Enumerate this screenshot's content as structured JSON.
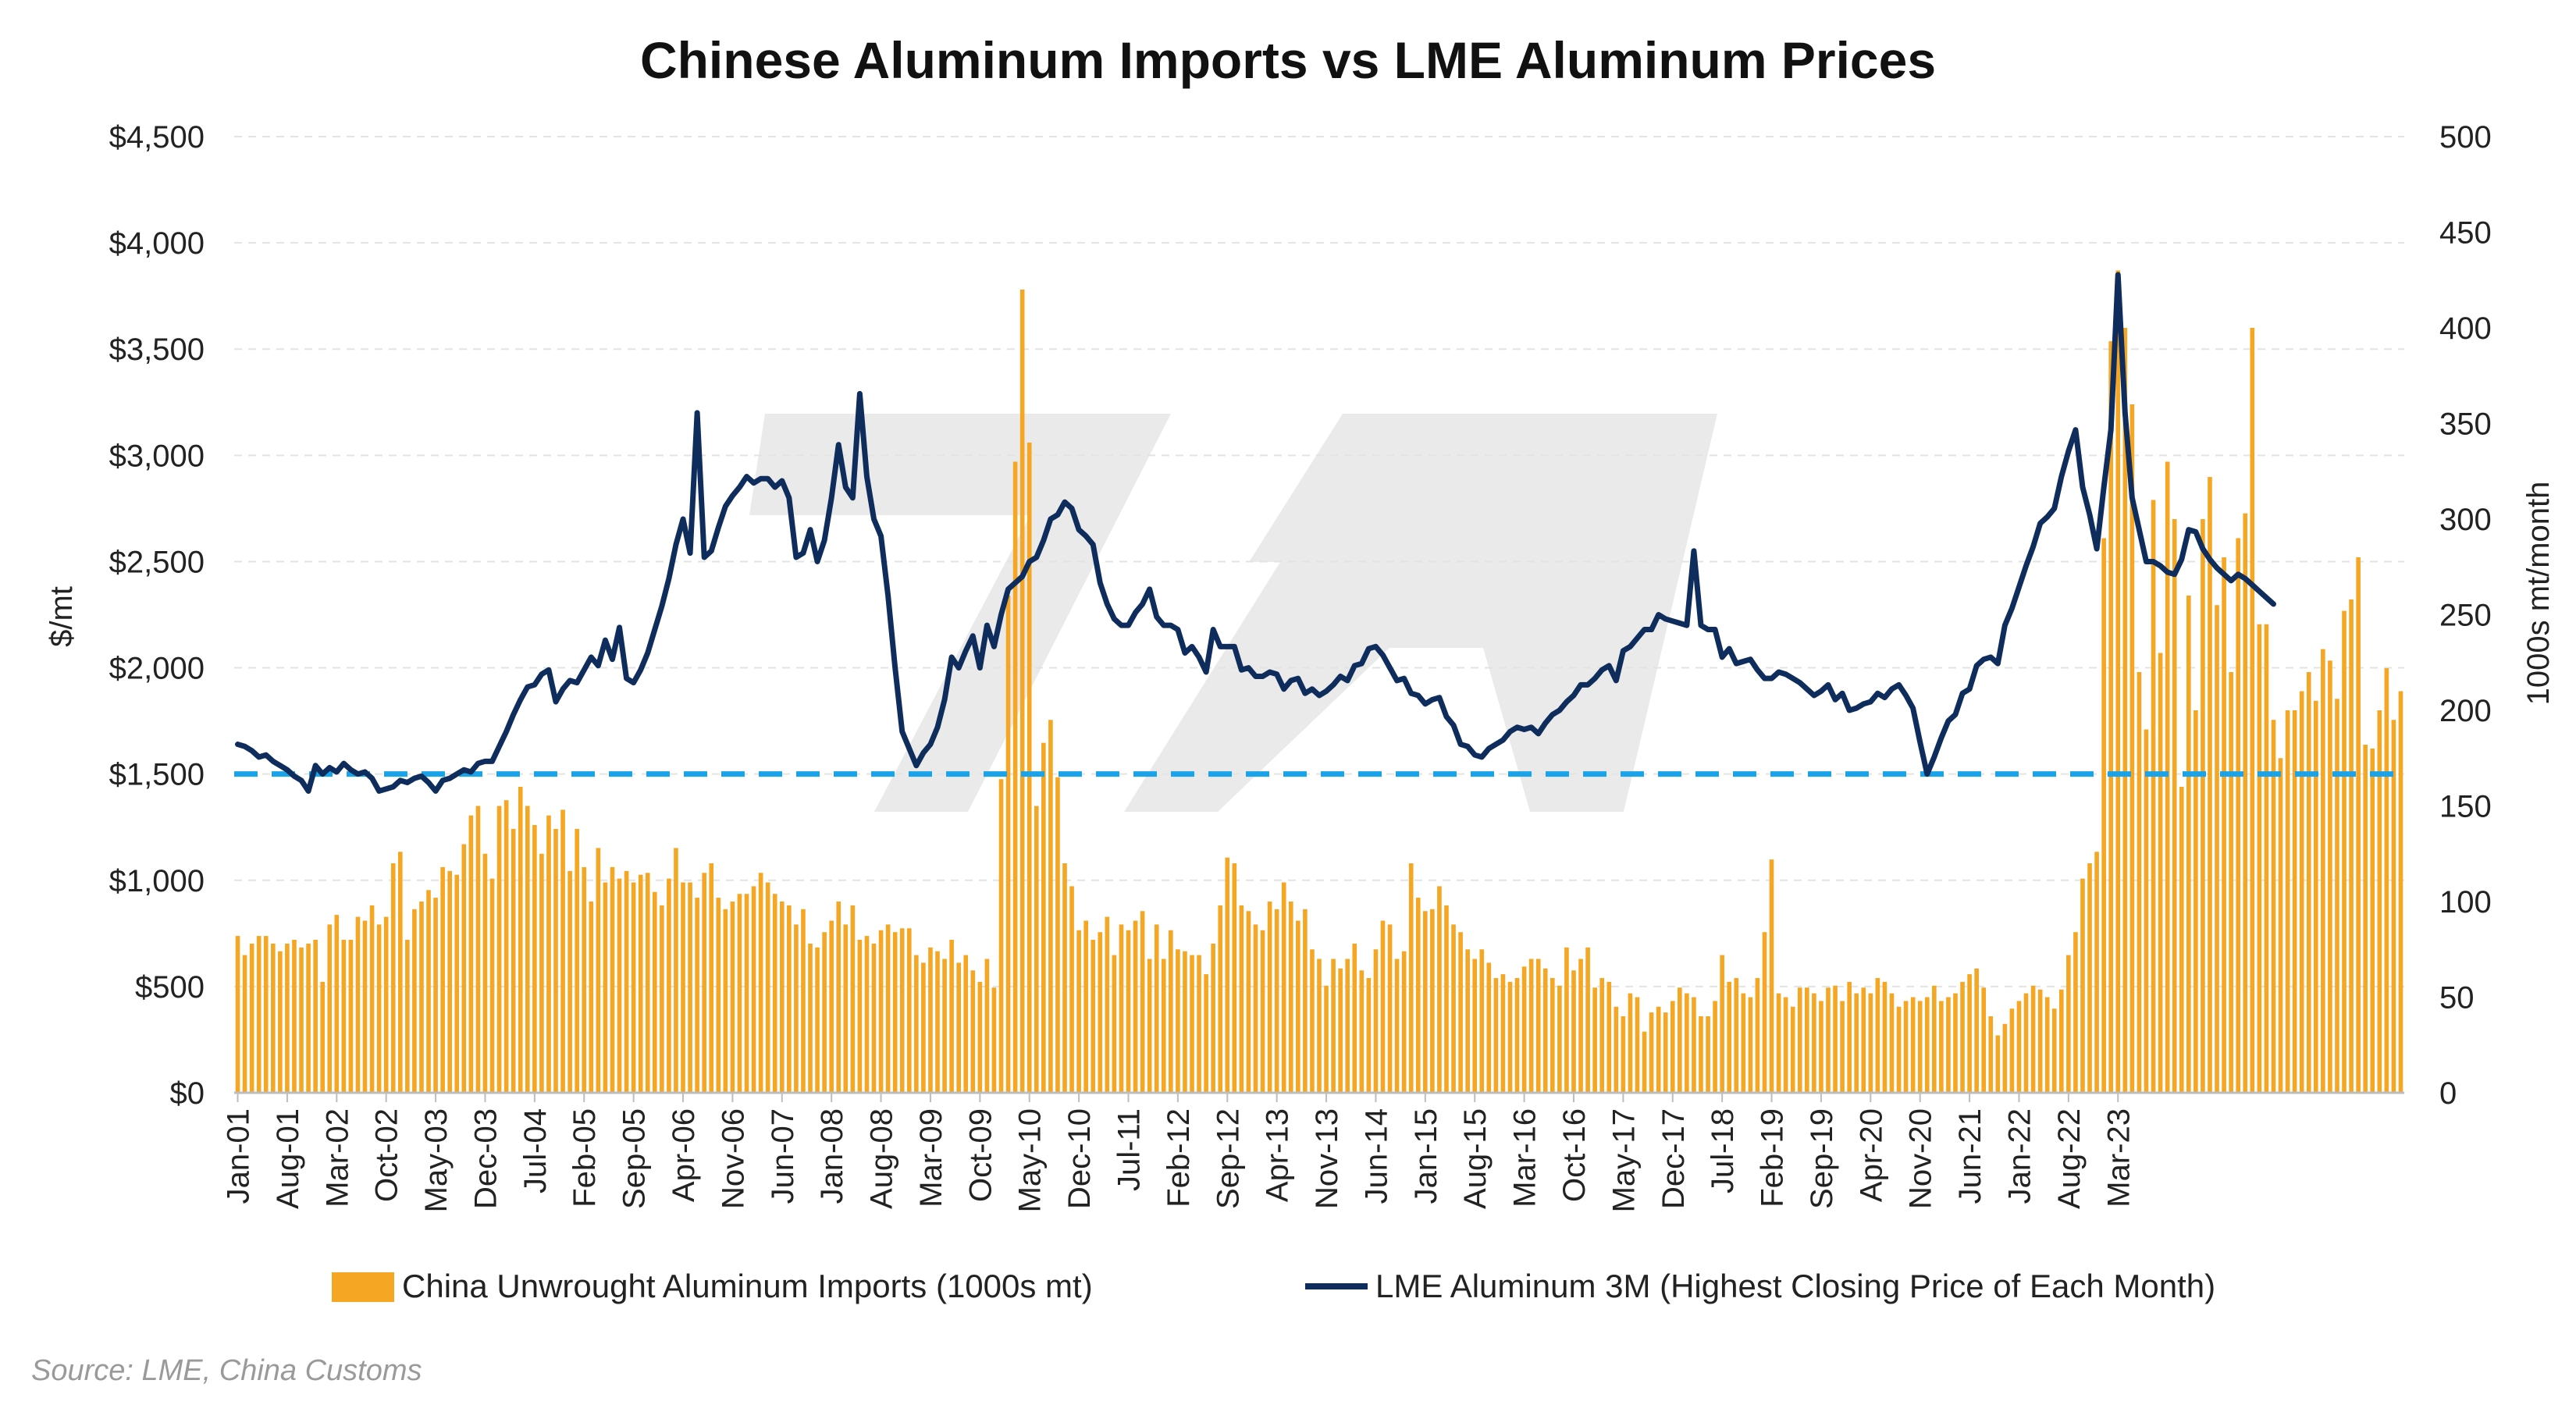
{
  "chart_data": {
    "type": "bar+line",
    "title": "Chinese Aluminum Imports vs LME Aluminum Prices",
    "subtitle": "",
    "source": "Source: LME, China Customs",
    "watermark_text": "7A",
    "y_left": {
      "label": "$/mt",
      "range": [
        0,
        4500
      ],
      "ticks": [
        "$0",
        "$500",
        "$1,000",
        "$1,500",
        "$2,000",
        "$2,500",
        "$3,000",
        "$3,500",
        "$4,000",
        "$4,500"
      ]
    },
    "y_right": {
      "label": "1000s mt/month",
      "range": [
        0,
        500
      ],
      "ticks": [
        "0",
        "50",
        "100",
        "150",
        "200",
        "250",
        "300",
        "350",
        "400",
        "450",
        "500"
      ]
    },
    "x_start": "Jan-01",
    "x_tick_labels": [
      "Jan-01",
      "Aug-01",
      "Mar-02",
      "Oct-02",
      "May-03",
      "Dec-03",
      "Jul-04",
      "Feb-05",
      "Sep-05",
      "Apr-06",
      "Nov-06",
      "Jun-07",
      "Jan-08",
      "Aug-08",
      "Mar-09",
      "Oct-09",
      "May-10",
      "Dec-10",
      "Jul-11",
      "Feb-12",
      "Sep-12",
      "Apr-13",
      "Nov-13",
      "Jun-14",
      "Jan-15",
      "Aug-15",
      "Mar-16",
      "Oct-16",
      "May-17",
      "Dec-17",
      "Jul-18",
      "Feb-19",
      "Sep-19",
      "Apr-20",
      "Nov-20",
      "Jun-21",
      "Jan-22",
      "Aug-22",
      "Mar-23"
    ],
    "grid": true,
    "reference_line": {
      "axis": "left",
      "value": 1500,
      "style": "dashed",
      "color": "#1aa3e8"
    },
    "legend_position": "bottom",
    "colors": {
      "bars": "#f5a623",
      "line": "#0f2d5c",
      "reference": "#1aa3e8",
      "grid": "#e3e3e3",
      "watermark": "#d9d9d9"
    },
    "series": [
      {
        "name": "China Unwrought Aluminum Imports (1000s mt)",
        "type": "bar",
        "axis": "right",
        "values": [
          82,
          72,
          78,
          82,
          82,
          78,
          74,
          78,
          80,
          76,
          78,
          80,
          58,
          88,
          93,
          80,
          80,
          92,
          90,
          98,
          88,
          92,
          120,
          126,
          80,
          96,
          100,
          106,
          102,
          118,
          116,
          114,
          130,
          145,
          150,
          125,
          112,
          150,
          153,
          138,
          160,
          150,
          140,
          125,
          145,
          138,
          148,
          116,
          138,
          118,
          100,
          128,
          110,
          118,
          112,
          116,
          110,
          114,
          115,
          105,
          98,
          112,
          128,
          110,
          110,
          102,
          115,
          120,
          102,
          96,
          100,
          104,
          104,
          108,
          115,
          110,
          104,
          100,
          98,
          88,
          96,
          78,
          76,
          84,
          90,
          100,
          88,
          98,
          80,
          82,
          78,
          85,
          88,
          84,
          86,
          86,
          72,
          68,
          76,
          74,
          70,
          80,
          68,
          72,
          64,
          58,
          70,
          55,
          164,
          260,
          330,
          420,
          340,
          150,
          183,
          195,
          165,
          120,
          108,
          85,
          90,
          80,
          84,
          92,
          72,
          88,
          85,
          90,
          95,
          70,
          88,
          70,
          85,
          75,
          74,
          72,
          72,
          62,
          78,
          98,
          123,
          120,
          98,
          95,
          88,
          85,
          100,
          96,
          110,
          100,
          90,
          96,
          75,
          70,
          56,
          70,
          65,
          70,
          78,
          64,
          60,
          75,
          90,
          88,
          70,
          74,
          120,
          102,
          95,
          96,
          108,
          98,
          88,
          84,
          75,
          70,
          75,
          68,
          60,
          62,
          58,
          60,
          66,
          70,
          70,
          65,
          60,
          56,
          76,
          64,
          70,
          76,
          55,
          60,
          58,
          45,
          40,
          52,
          50,
          32,
          42,
          45,
          42,
          48,
          55,
          52,
          50,
          40,
          40,
          48,
          72,
          58,
          60,
          52,
          50,
          60,
          84,
          122,
          52,
          50,
          45,
          55,
          55,
          52,
          48,
          55,
          56,
          48,
          58,
          52,
          55,
          52,
          60,
          58,
          52,
          45,
          48,
          50,
          48,
          50,
          56,
          48,
          50,
          52,
          58,
          62,
          65,
          55,
          40,
          30,
          36,
          44,
          48,
          52,
          56,
          54,
          50,
          44,
          54,
          72,
          84,
          112,
          120,
          126,
          290,
          393,
          430,
          400,
          360,
          220,
          190,
          310,
          230,
          330,
          300,
          160,
          260,
          200,
          300,
          322,
          255,
          280,
          220,
          290,
          303,
          400,
          245,
          245,
          195,
          175,
          200,
          200,
          210,
          220,
          205,
          232,
          226,
          206,
          252,
          258,
          280,
          182,
          180,
          200,
          222,
          195,
          210
        ],
        "note": "approximate monthly values read from the right axis (1000s mt), Jan-01 to Jun-23"
      },
      {
        "name": "LME Aluminum 3M (Highest Closing Price of Each Month)",
        "type": "line",
        "axis": "left",
        "values": [
          1640,
          1630,
          1610,
          1580,
          1590,
          1560,
          1540,
          1520,
          1490,
          1470,
          1420,
          1540,
          1500,
          1530,
          1510,
          1550,
          1520,
          1500,
          1510,
          1480,
          1420,
          1430,
          1440,
          1470,
          1460,
          1480,
          1490,
          1460,
          1420,
          1470,
          1480,
          1500,
          1520,
          1510,
          1550,
          1560,
          1560,
          1630,
          1700,
          1780,
          1850,
          1910,
          1920,
          1970,
          1990,
          1840,
          1900,
          1940,
          1930,
          1990,
          2050,
          2010,
          2130,
          2040,
          2190,
          1950,
          1930,
          1990,
          2070,
          2180,
          2290,
          2420,
          2580,
          2700,
          2540,
          3200,
          2520,
          2550,
          2660,
          2760,
          2810,
          2850,
          2900,
          2870,
          2890,
          2890,
          2850,
          2880,
          2800,
          2520,
          2540,
          2650,
          2500,
          2600,
          2800,
          3050,
          2850,
          2800,
          3290,
          2900,
          2700,
          2620,
          2340,
          2000,
          1700,
          1620,
          1540,
          1600,
          1640,
          1720,
          1850,
          2050,
          2000,
          2080,
          2150,
          2000,
          2200,
          2100,
          2250,
          2370,
          2400,
          2430,
          2500,
          2520,
          2600,
          2700,
          2720,
          2780,
          2750,
          2650,
          2620,
          2580,
          2400,
          2300,
          2230,
          2200,
          2200,
          2260,
          2300,
          2370,
          2240,
          2200,
          2200,
          2180,
          2070,
          2100,
          2050,
          1980,
          2180,
          2100,
          2100,
          2100,
          1990,
          2000,
          1960,
          1960,
          1980,
          1970,
          1900,
          1940,
          1950,
          1880,
          1900,
          1870,
          1890,
          1920,
          1960,
          1940,
          2010,
          2020,
          2090,
          2100,
          2060,
          2000,
          1940,
          1950,
          1880,
          1870,
          1830,
          1850,
          1860,
          1770,
          1730,
          1640,
          1630,
          1590,
          1580,
          1620,
          1640,
          1660,
          1700,
          1720,
          1710,
          1720,
          1690,
          1740,
          1780,
          1800,
          1840,
          1870,
          1920,
          1920,
          1950,
          1990,
          2010,
          1940,
          2080,
          2100,
          2140,
          2180,
          2180,
          2250,
          2230,
          2220,
          2210,
          2200,
          2550,
          2200,
          2180,
          2180,
          2050,
          2090,
          2020,
          2030,
          2040,
          1990,
          1950,
          1950,
          1980,
          1970,
          1950,
          1930,
          1900,
          1870,
          1890,
          1920,
          1850,
          1880,
          1800,
          1810,
          1830,
          1840,
          1880,
          1860,
          1900,
          1920,
          1870,
          1810,
          1650,
          1500,
          1580,
          1670,
          1750,
          1780,
          1880,
          1900,
          2010,
          2040,
          2050,
          2020,
          2200,
          2280,
          2380,
          2480,
          2570,
          2680,
          2710,
          2750,
          2900,
          3020,
          3120,
          2850,
          2720,
          2560,
          2850,
          3120,
          3850,
          3200,
          2800,
          2650,
          2500,
          2500,
          2480,
          2450,
          2440,
          2510,
          2650,
          2640,
          2560,
          2510,
          2470,
          2440,
          2410,
          2440,
          2420,
          2390,
          2360,
          2330,
          2300
        ]
      }
    ]
  }
}
